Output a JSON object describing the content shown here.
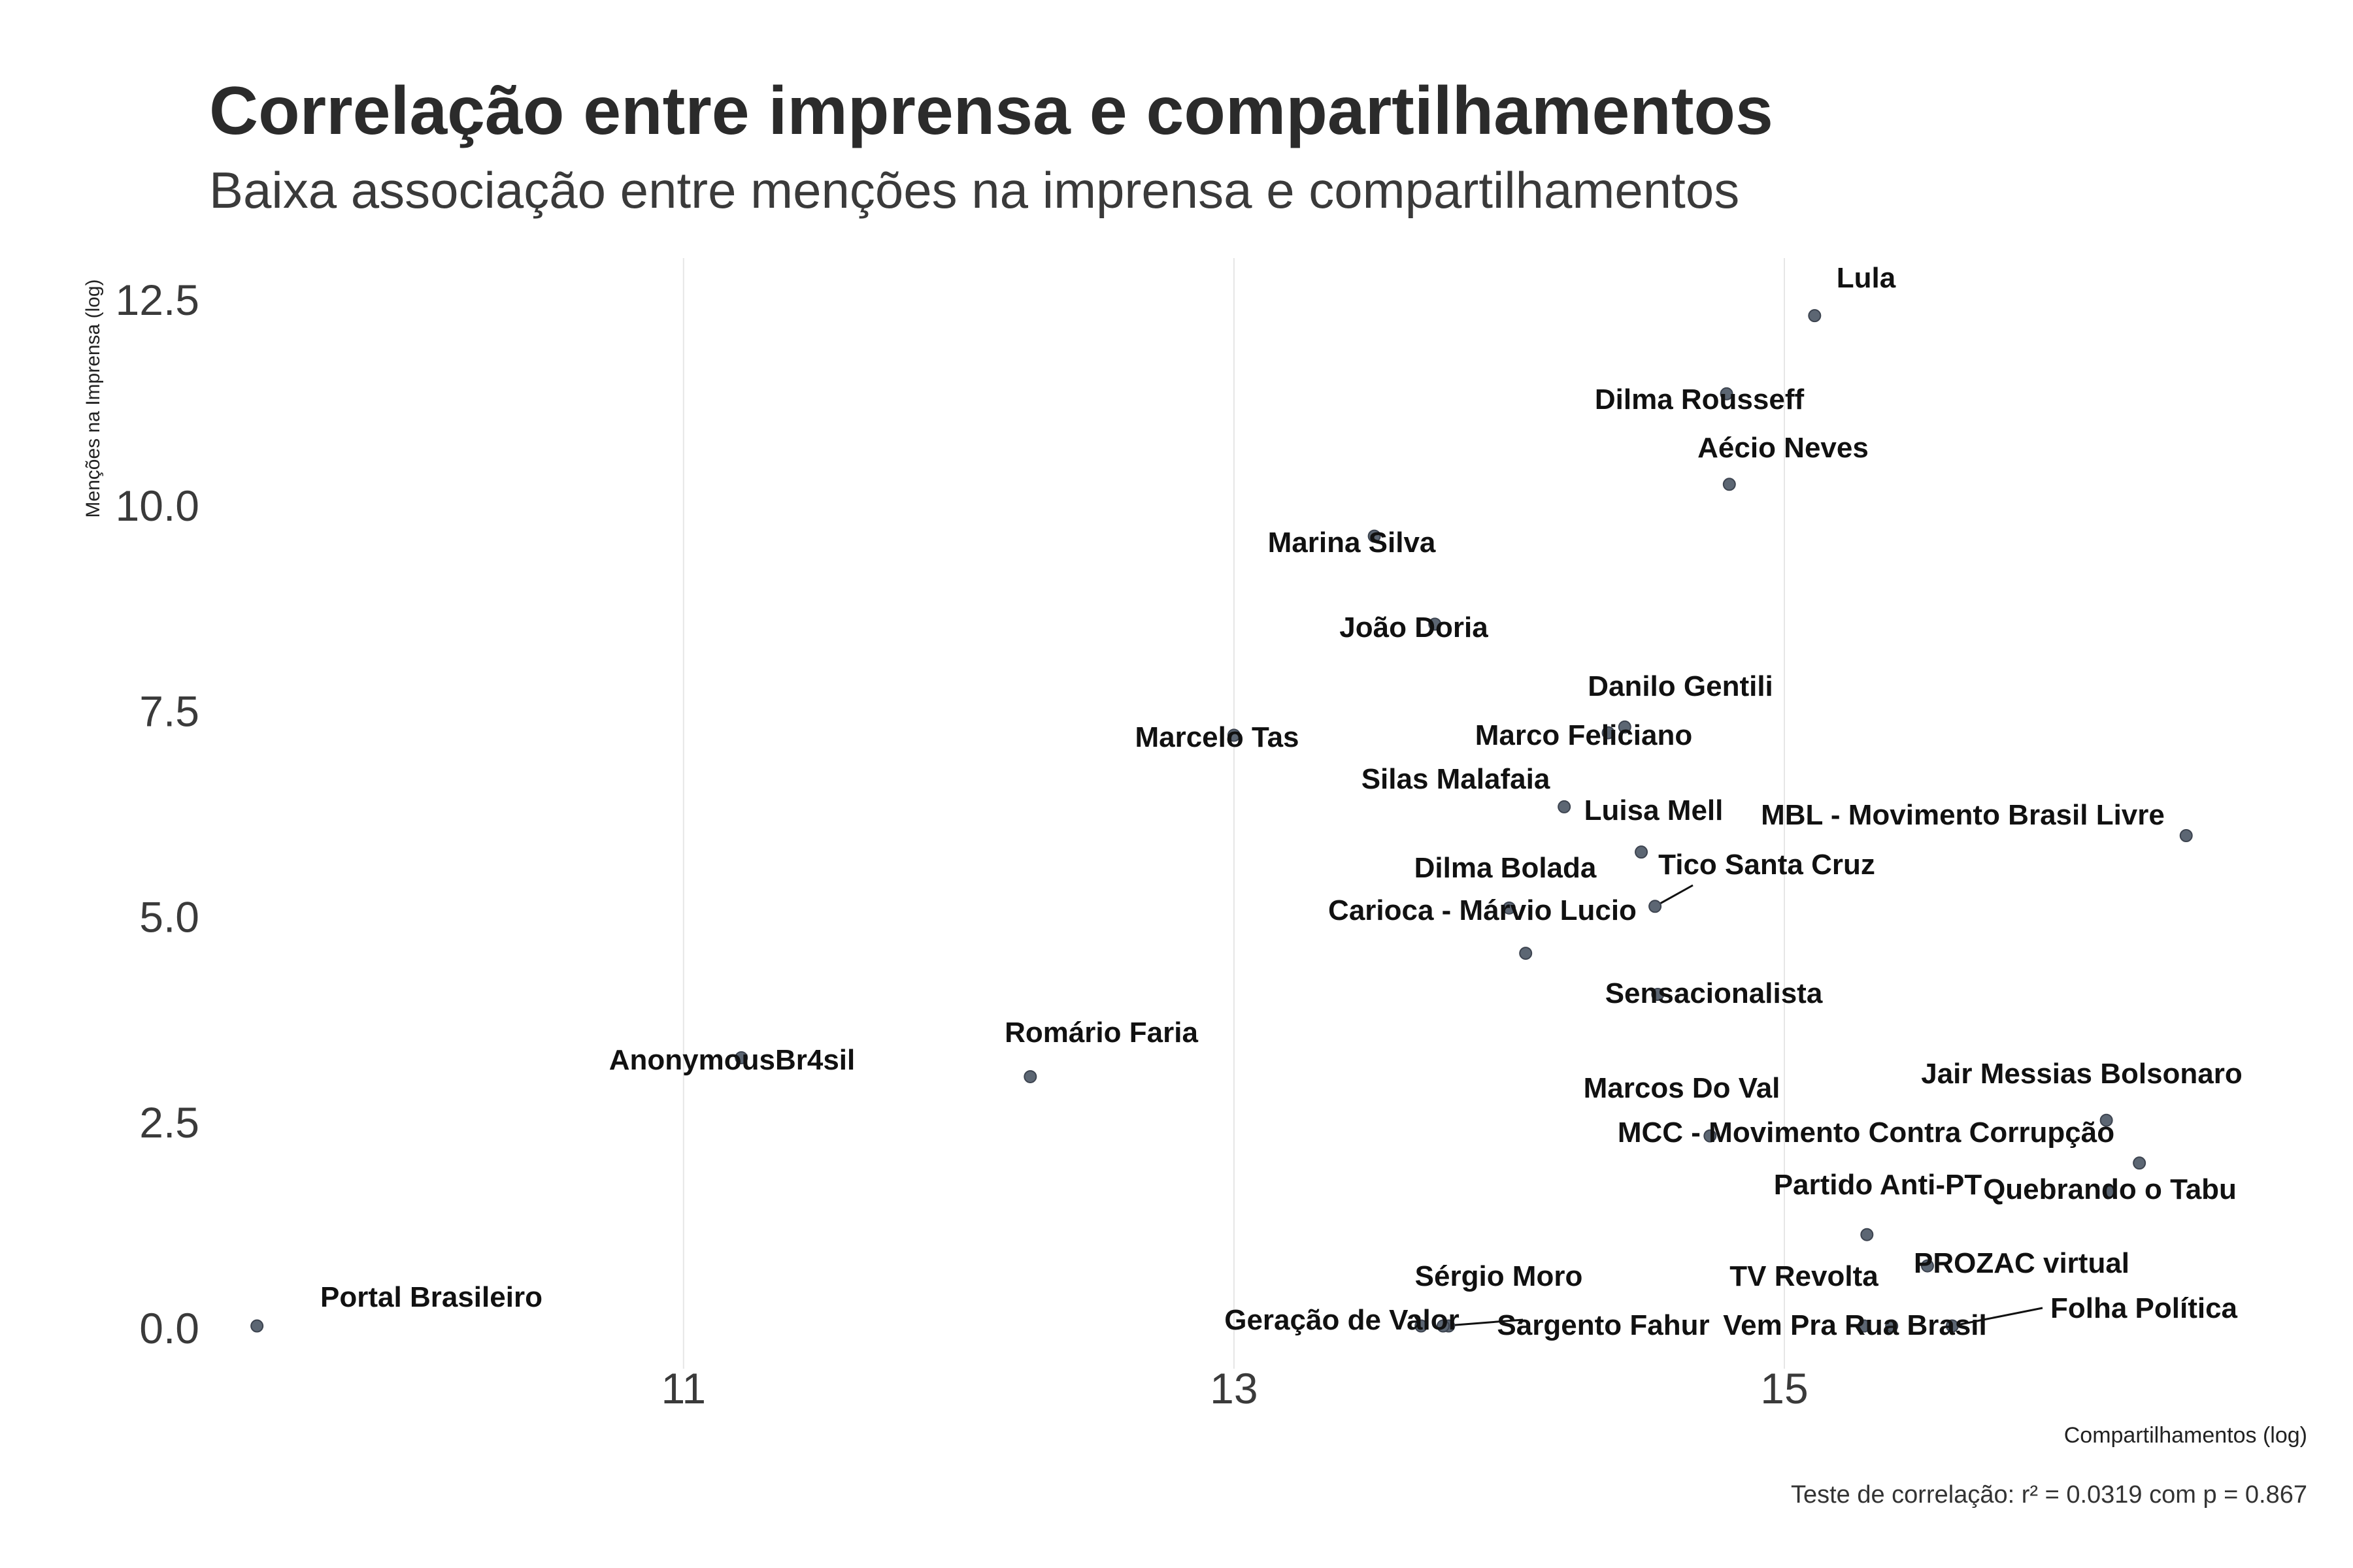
{
  "chart_data": {
    "type": "scatter",
    "title": "Correlação entre imprensa e compartilhamentos",
    "subtitle": "Baixa associação entre menções na imprensa e compartilhamentos",
    "xlabel": "Compartilhamentos (log)",
    "ylabel": "Menções na Imprensa  (log)",
    "caption": "Teste de correlação: r² =  0.0319 com p =  0.867",
    "xlim": [
      9.3,
      16.9
    ],
    "ylim": [
      -0.5,
      13.0
    ],
    "x_ticks": [
      11,
      13,
      15
    ],
    "x_tick_labels": [
      "11",
      "13",
      "15"
    ],
    "y_ticks": [
      0.0,
      2.5,
      5.0,
      7.5,
      10.0,
      12.5
    ],
    "y_tick_labels": [
      "0.0",
      "2.5",
      "5.0",
      "7.5",
      "10.0",
      "12.5"
    ],
    "grid": {
      "vertical_major": true,
      "horizontal": false
    },
    "point_color": "#5c6673",
    "points": [
      {
        "label": "Lula",
        "x": 15.11,
        "y": 12.3
      },
      {
        "label": "Dilma Rousseff",
        "x": 14.79,
        "y": 11.35
      },
      {
        "label": "Aécio Neves",
        "x": 14.8,
        "y": 10.25
      },
      {
        "label": "Marina Silva",
        "x": 13.51,
        "y": 9.62
      },
      {
        "label": "João Doria",
        "x": 13.73,
        "y": 8.55
      },
      {
        "label": "Marcelo Tas",
        "x": 13.0,
        "y": 7.2
      },
      {
        "label": "Danilo Gentili",
        "x": 14.42,
        "y": 7.3
      },
      {
        "label": "Marco Feliciano",
        "x": 14.36,
        "y": 7.23
      },
      {
        "label": "Silas Malafaia",
        "x": 14.2,
        "y": 6.33
      },
      {
        "label": "Luisa Mell",
        "x": 14.48,
        "y": 5.78
      },
      {
        "label": "MBL - Movimento Brasil Livre",
        "x": 16.46,
        "y": 5.98
      },
      {
        "label": "Dilma Bolada",
        "x": 14.0,
        "y": 5.1
      },
      {
        "label": "Tico Santa Cruz",
        "x": 14.53,
        "y": 5.12
      },
      {
        "label": "Carioca - Márvio Lucio",
        "x": 14.06,
        "y": 4.55
      },
      {
        "label": "Sensacionalista",
        "x": 14.54,
        "y": 4.05
      },
      {
        "label": "AnonymousBr4sil",
        "x": 11.21,
        "y": 3.28
      },
      {
        "label": "Romário Faria",
        "x": 12.26,
        "y": 3.05
      },
      {
        "label": "Marcos Do Val",
        "x": 14.73,
        "y": 2.33
      },
      {
        "label": "Jair Messias Bolsonaro",
        "x": 16.17,
        "y": 2.52
      },
      {
        "label": "MCC - Movimento Contra Corrupção",
        "x": 16.29,
        "y": 2.0
      },
      {
        "label": "Quebrando o Tabu",
        "x": 16.18,
        "y": 1.65
      },
      {
        "label": "Partido Anti-PT",
        "x": 15.3,
        "y": 1.13
      },
      {
        "label": "PROZAC virtual",
        "x": 15.52,
        "y": 0.75
      },
      {
        "label": "TV Revolta",
        "x": 15.29,
        "y": 0.02
      },
      {
        "label": "Vem Pra Rua Brasil",
        "x": 15.39,
        "y": 0.02
      },
      {
        "label": "Folha Política",
        "x": 15.61,
        "y": 0.02
      },
      {
        "label": "Sérgio Moro",
        "x": 13.78,
        "y": 0.02
      },
      {
        "label": "Geração de Valor",
        "x": 13.68,
        "y": 0.02
      },
      {
        "label": "Sargento Fahur",
        "x": 13.76,
        "y": 0.02
      },
      {
        "label": "Portal Brasileiro",
        "x": 9.45,
        "y": 0.02
      }
    ]
  }
}
